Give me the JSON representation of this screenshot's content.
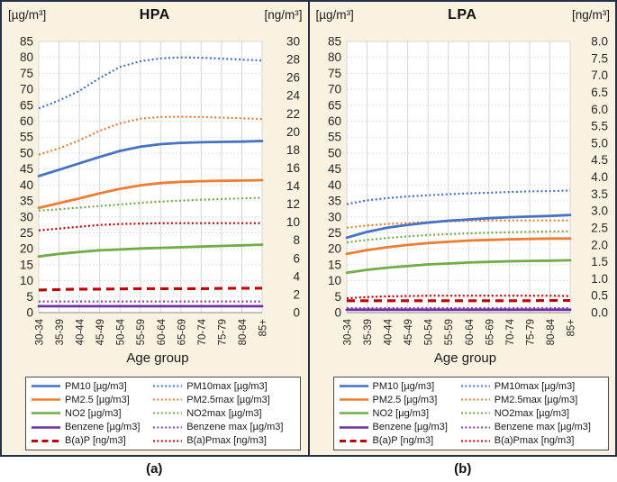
{
  "theme": {
    "background": "#FAF2E1",
    "border": "#25314A",
    "plot_bg": "#FFFFFF",
    "gridline_v": "#D6D6D6",
    "gridline_h": "#E0E0E0",
    "axis_line": "#9E9E9E",
    "tick_text": "#262626"
  },
  "legend": {
    "entries": [
      {
        "label": "PM10  [µg/m3]",
        "color": "#4472C4",
        "style": "solid"
      },
      {
        "label": "PM10max [µg/m3]",
        "color": "#4472C4",
        "style": "dotted"
      },
      {
        "label": "PM2.5  [µg/m3]",
        "color": "#ED7D31",
        "style": "solid"
      },
      {
        "label": "PM2.5max [µg/m3]",
        "color": "#ED7D31",
        "style": "dotted"
      },
      {
        "label": "NO2  [µg/m3]",
        "color": "#70AD47",
        "style": "solid"
      },
      {
        "label": "NO2max [µg/m3]",
        "color": "#70AD47",
        "style": "dotted"
      },
      {
        "label": "Benzene  [µg/m3]",
        "color": "#7030A0",
        "style": "solid"
      },
      {
        "label": "Benzene max [µg/m3]",
        "color": "#8640BE",
        "style": "dotted"
      },
      {
        "label": "B(a)P [ng/m3]",
        "color": "#C00000",
        "style": "dashed"
      },
      {
        "label": "B(a)Pmax  [ng/m3]",
        "color": "#C00000",
        "style": "dotted"
      }
    ]
  },
  "chart_data": [
    {
      "type": "line",
      "title": "HPA",
      "caption": "(a)",
      "xlabel": "Age group",
      "left_axis": {
        "unit": "[µg/m³]",
        "max": 85,
        "ticks": [
          "85",
          "80",
          "75",
          "70",
          "65",
          "60",
          "55",
          "50",
          "45",
          "40",
          "35",
          "30",
          "25",
          "20",
          "15",
          "10",
          "5",
          "0"
        ]
      },
      "right_axis": {
        "unit": "[ng/m³]",
        "max": 30,
        "ticks": [
          "30",
          "28",
          "26",
          "24",
          "22",
          "20",
          "18",
          "16",
          "14",
          "12",
          "10",
          "8",
          "6",
          "4",
          "2",
          "0"
        ]
      },
      "categories": [
        "30-34",
        "35-39",
        "40-44",
        "45-49",
        "50-54",
        "55-59",
        "60-64",
        "65-69",
        "70-74",
        "75-79",
        "80-84",
        "85+"
      ],
      "series": [
        {
          "name": "PM10max [µg/m3]",
          "axis": "left",
          "style": "dotted",
          "color": "#4472C4",
          "values": [
            64,
            66.5,
            69.5,
            73.5,
            77,
            78.8,
            79.7,
            80,
            79.9,
            79.6,
            79.3,
            79
          ]
        },
        {
          "name": "PM2.5max [µg/m3]",
          "axis": "left",
          "style": "dotted",
          "color": "#ED7D31",
          "values": [
            49.5,
            51.5,
            54,
            57,
            59.3,
            60.8,
            61.3,
            61.4,
            61.3,
            61.1,
            60.9,
            60.7
          ]
        },
        {
          "name": "NO2max [µg/m3]",
          "axis": "left",
          "style": "dotted",
          "color": "#70AD47",
          "values": [
            32,
            32.4,
            32.9,
            33.4,
            33.9,
            34.4,
            34.8,
            35.1,
            35.4,
            35.6,
            35.8,
            36
          ]
        },
        {
          "name": "Benzene max [µg/m3]",
          "axis": "left",
          "style": "dotted",
          "color": "#8640BE",
          "values": [
            3.5,
            3.5,
            3.5,
            3.5,
            3.5,
            3.5,
            3.5,
            3.5,
            3.5,
            3.5,
            3.5,
            3.5
          ]
        },
        {
          "name": "B(a)Pmax [ng/m3]",
          "axis": "right",
          "style": "dotted",
          "color": "#C00000",
          "values": [
            9.1,
            9.3,
            9.5,
            9.7,
            9.8,
            9.85,
            9.9,
            9.9,
            9.9,
            9.9,
            9.9,
            9.9
          ]
        },
        {
          "name": "PM10 [µg/m3]",
          "axis": "left",
          "style": "solid",
          "color": "#4472C4",
          "values": [
            42.8,
            44.8,
            46.8,
            48.8,
            50.7,
            52,
            52.8,
            53.2,
            53.4,
            53.5,
            53.6,
            53.8
          ]
        },
        {
          "name": "PM2.5 [µg/m3]",
          "axis": "left",
          "style": "solid",
          "color": "#ED7D31",
          "values": [
            32.8,
            34.3,
            35.8,
            37.4,
            38.8,
            39.9,
            40.6,
            41,
            41.2,
            41.3,
            41.4,
            41.5
          ]
        },
        {
          "name": "NO2 [µg/m3]",
          "axis": "left",
          "style": "solid",
          "color": "#70AD47",
          "values": [
            17.6,
            18.4,
            19,
            19.5,
            19.8,
            20.1,
            20.3,
            20.5,
            20.7,
            20.9,
            21.1,
            21.3
          ]
        },
        {
          "name": "Benzene [µg/m3]",
          "axis": "left",
          "style": "solid",
          "color": "#7030A0",
          "values": [
            2,
            2,
            2,
            2,
            2,
            2,
            2,
            2,
            2,
            2,
            2,
            2
          ]
        },
        {
          "name": "B(a)P [ng/m3]",
          "axis": "right",
          "style": "dashed",
          "color": "#C00000",
          "values": [
            2.5,
            2.55,
            2.6,
            2.6,
            2.62,
            2.65,
            2.65,
            2.65,
            2.65,
            2.68,
            2.7,
            2.7
          ]
        }
      ]
    },
    {
      "type": "line",
      "title": "LPA",
      "caption": "(b)",
      "xlabel": "Age group",
      "left_axis": {
        "unit": "[µg/m³]",
        "max": 85,
        "ticks": [
          "85",
          "80",
          "75",
          "70",
          "65",
          "60",
          "55",
          "50",
          "45",
          "40",
          "35",
          "30",
          "25",
          "20",
          "15",
          "10",
          "5",
          "0"
        ]
      },
      "right_axis": {
        "unit": "[ng/m³]",
        "max": 8,
        "ticks": [
          "8.0",
          "7.5",
          "7.0",
          "6.5",
          "6.0",
          "5.5",
          "5.0",
          "4.5",
          "4.0",
          "3.5",
          "3.0",
          "2.5",
          "2.0",
          "1.5",
          "1.0",
          "0.5",
          "0.0"
        ]
      },
      "categories": [
        "30-34",
        "35-39",
        "40-44",
        "45-49",
        "50-54",
        "55-59",
        "60-64",
        "65-69",
        "70-74",
        "75-79",
        "80-84",
        "85+"
      ],
      "series": [
        {
          "name": "PM10max [µg/m3]",
          "axis": "left",
          "style": "dotted",
          "color": "#4472C4",
          "values": [
            34,
            35.2,
            35.9,
            36.4,
            36.8,
            37.1,
            37.4,
            37.6,
            37.8,
            38,
            38.1,
            38.3
          ]
        },
        {
          "name": "PM2.5max [µg/m3]",
          "axis": "left",
          "style": "dotted",
          "color": "#ED7D31",
          "values": [
            26.6,
            27.3,
            27.8,
            28.1,
            28.4,
            28.6,
            28.75,
            28.85,
            28.9,
            28.9,
            28.9,
            28.9
          ]
        },
        {
          "name": "NO2max [µg/m3]",
          "axis": "left",
          "style": "dotted",
          "color": "#70AD47",
          "values": [
            22,
            22.8,
            23.4,
            23.9,
            24.3,
            24.6,
            24.85,
            25.05,
            25.2,
            25.35,
            25.45,
            25.5
          ]
        },
        {
          "name": "Benzene max [µg/m3]",
          "axis": "left",
          "style": "dotted",
          "color": "#8640BE",
          "values": [
            1.4,
            1.4,
            1.4,
            1.4,
            1.4,
            1.4,
            1.4,
            1.4,
            1.4,
            1.4,
            1.4,
            1.4
          ]
        },
        {
          "name": "B(a)Pmax [ng/m3]",
          "axis": "right",
          "style": "dotted",
          "color": "#C00000",
          "values": [
            0.42,
            0.46,
            0.48,
            0.49,
            0.5,
            0.5,
            0.5,
            0.5,
            0.5,
            0.5,
            0.5,
            0.49
          ]
        },
        {
          "name": "PM10 [µg/m3]",
          "axis": "left",
          "style": "solid",
          "color": "#4472C4",
          "values": [
            23.5,
            25.3,
            26.6,
            27.5,
            28.2,
            28.8,
            29.2,
            29.6,
            29.9,
            30.1,
            30.3,
            30.6
          ]
        },
        {
          "name": "PM2.5 [µg/m3]",
          "axis": "left",
          "style": "solid",
          "color": "#ED7D31",
          "values": [
            18.4,
            19.6,
            20.5,
            21.2,
            21.8,
            22.2,
            22.6,
            22.8,
            23,
            23.1,
            23.2,
            23.2
          ]
        },
        {
          "name": "NO2 [µg/m3]",
          "axis": "left",
          "style": "solid",
          "color": "#70AD47",
          "values": [
            12.5,
            13.4,
            14.1,
            14.6,
            15.1,
            15.4,
            15.7,
            15.9,
            16.1,
            16.2,
            16.3,
            16.4
          ]
        },
        {
          "name": "Benzene [µg/m3]",
          "axis": "left",
          "style": "solid",
          "color": "#7030A0",
          "values": [
            0.9,
            0.9,
            0.9,
            0.9,
            0.9,
            0.9,
            0.9,
            0.9,
            0.9,
            0.9,
            0.9,
            0.9
          ]
        },
        {
          "name": "B(a)P [ng/m3]",
          "axis": "right",
          "style": "dashed",
          "color": "#C00000",
          "values": [
            0.35,
            0.35,
            0.35,
            0.35,
            0.35,
            0.35,
            0.35,
            0.35,
            0.35,
            0.35,
            0.36,
            0.36
          ]
        }
      ]
    }
  ]
}
